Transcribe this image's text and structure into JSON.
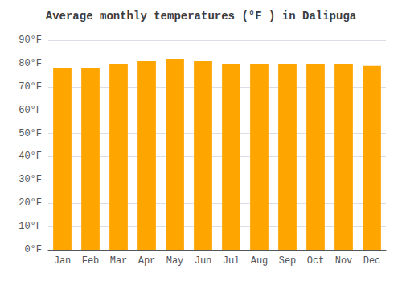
{
  "chart_data": {
    "type": "bar",
    "title": "Average monthly temperatures (°F ) in Dalipuga",
    "categories": [
      "Jan",
      "Feb",
      "Mar",
      "Apr",
      "May",
      "Jun",
      "Jul",
      "Aug",
      "Sep",
      "Oct",
      "Nov",
      "Dec"
    ],
    "values": [
      78,
      78,
      80,
      81,
      82,
      81,
      80,
      80,
      80,
      80,
      80,
      79
    ],
    "color": "#FFA500",
    "ylim": [
      0,
      90
    ],
    "yticks": [
      {
        "value": 0,
        "label": "0°F"
      },
      {
        "value": 10,
        "label": "10°F"
      },
      {
        "value": 20,
        "label": "20°F"
      },
      {
        "value": 30,
        "label": "30°F"
      },
      {
        "value": 40,
        "label": "40°F"
      },
      {
        "value": 50,
        "label": "50°F"
      },
      {
        "value": 60,
        "label": "60°F"
      },
      {
        "value": 70,
        "label": "70°F"
      },
      {
        "value": 80,
        "label": "80°F"
      },
      {
        "value": 90,
        "label": "90°F"
      }
    ],
    "grid": true
  }
}
